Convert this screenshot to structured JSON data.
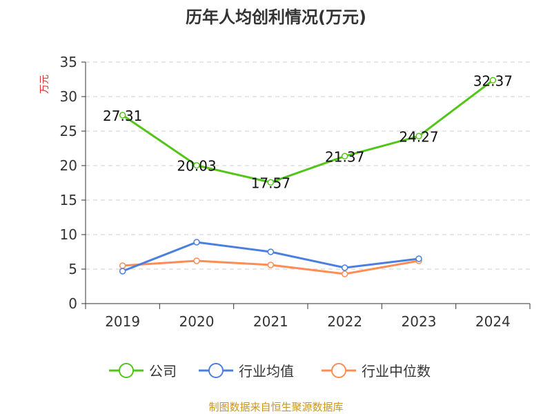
{
  "chart_data": {
    "type": "line",
    "title": "历年人均创利情况(万元)",
    "ylabel": "万元",
    "xlabel": "",
    "categories": [
      "2019",
      "2020",
      "2021",
      "2022",
      "2023",
      "2024"
    ],
    "ylim": [
      0,
      35
    ],
    "yticks": [
      0,
      5,
      10,
      15,
      20,
      25,
      30,
      35
    ],
    "grid": true,
    "legend_position": "bottom",
    "series": [
      {
        "name": "公司",
        "color": "#52c41a",
        "values": [
          27.31,
          20.03,
          17.57,
          21.37,
          24.27,
          32.37
        ],
        "labels": [
          "27.31",
          "20.03",
          "17.57",
          "21.37",
          "24.27",
          "32.37"
        ]
      },
      {
        "name": "行业均值",
        "color": "#4a7fe0",
        "values": [
          4.7,
          8.9,
          7.5,
          5.2,
          6.5,
          null
        ]
      },
      {
        "name": "行业中位数",
        "color": "#ff8c55",
        "values": [
          5.5,
          6.2,
          5.6,
          4.3,
          6.2,
          null
        ]
      }
    ]
  },
  "source": "制图数据来自恒生聚源数据库"
}
